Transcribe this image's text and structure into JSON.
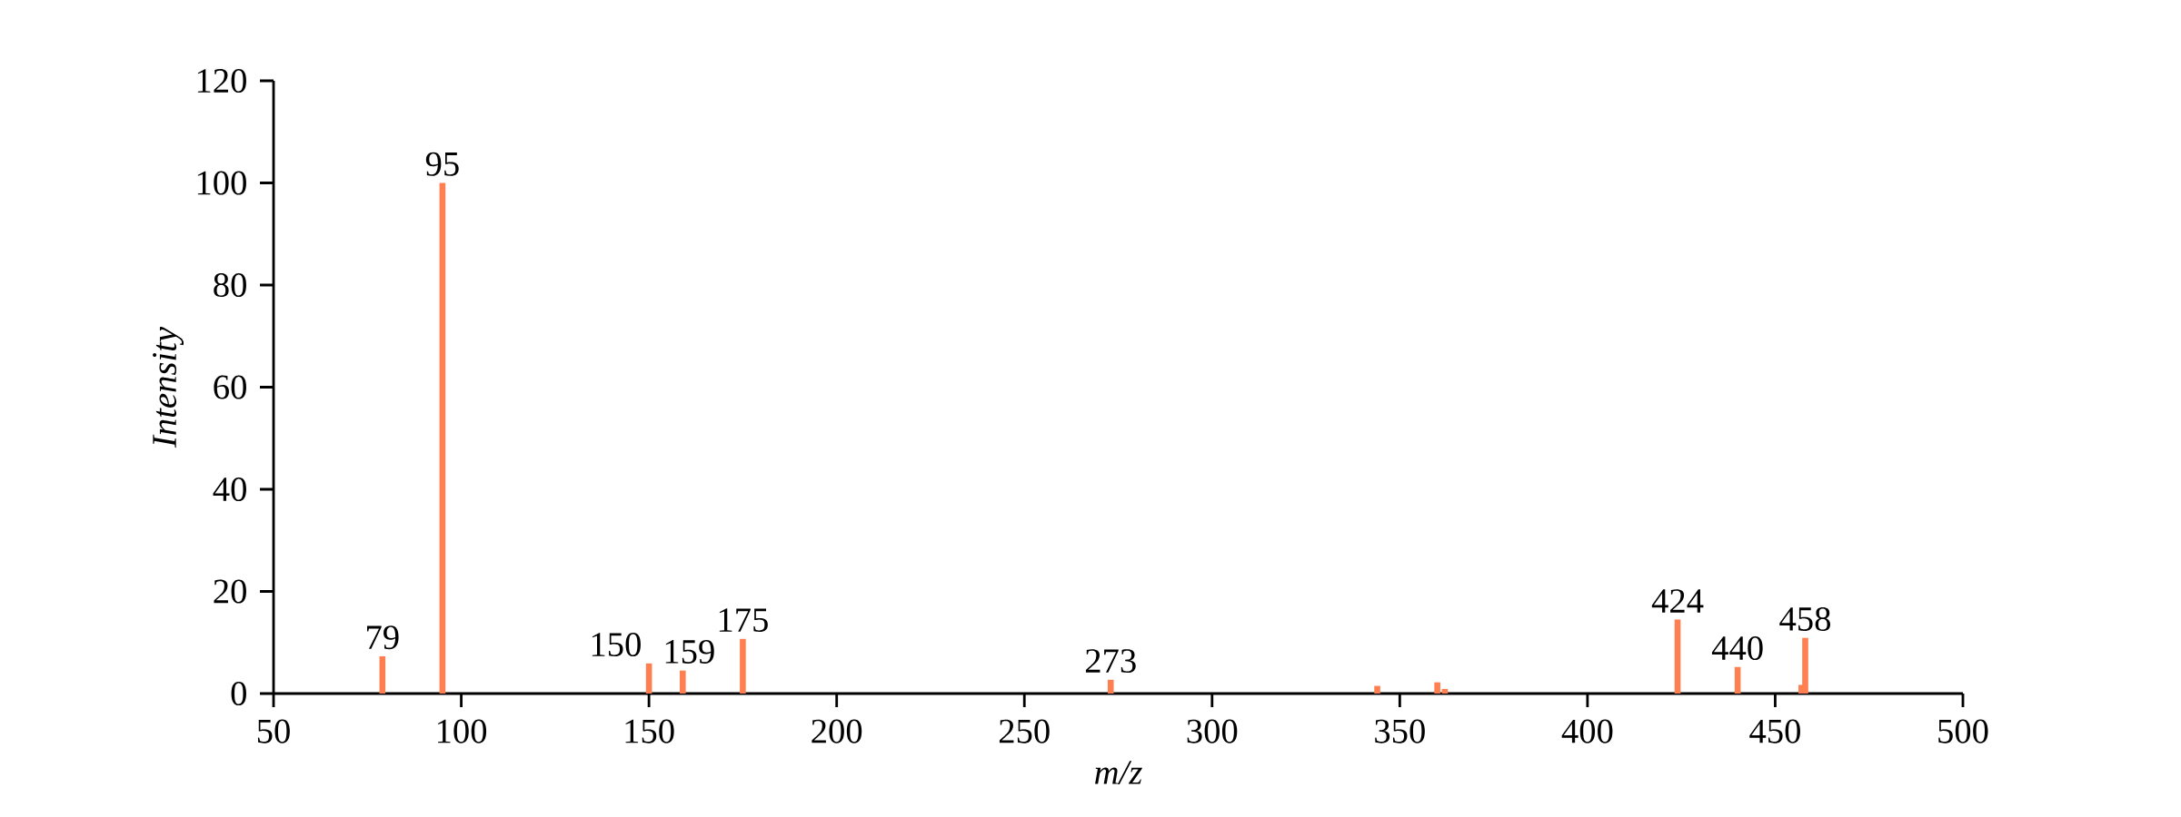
{
  "chart_data": {
    "type": "bar",
    "xlabel": "m/z",
    "ylabel": "Intensity",
    "x": [
      79,
      95,
      150,
      159,
      175,
      273,
      344,
      360,
      362,
      424,
      440,
      457,
      458
    ],
    "values": [
      7.3,
      100,
      5.9,
      4.5,
      10.7,
      2.7,
      1.5,
      2.2,
      0.9,
      14.5,
      5.2,
      1.7,
      10.9
    ],
    "annotations": [
      {
        "text": "79",
        "x": 79,
        "y": 7.3
      },
      {
        "text": "95",
        "x": 95,
        "y": 100
      },
      {
        "text": "150",
        "x": 150,
        "y": 5.9
      },
      {
        "text": "159",
        "x": 159,
        "y": 4.5
      },
      {
        "text": "175",
        "x": 175,
        "y": 10.7
      },
      {
        "text": "273",
        "x": 273,
        "y": 2.7
      },
      {
        "text": "424",
        "x": 424,
        "y": 14.5
      },
      {
        "text": "440",
        "x": 440,
        "y": 5.2
      },
      {
        "text": "458",
        "x": 458,
        "y": 10.9
      }
    ],
    "color": "#ff7f50",
    "xlim": [
      50,
      500
    ],
    "xticks": [
      50,
      100,
      150,
      200,
      250,
      300,
      350,
      400,
      450,
      500
    ],
    "ylim": [
      0,
      120
    ],
    "yticks": [
      0,
      20,
      40,
      60,
      80,
      100,
      120
    ]
  }
}
